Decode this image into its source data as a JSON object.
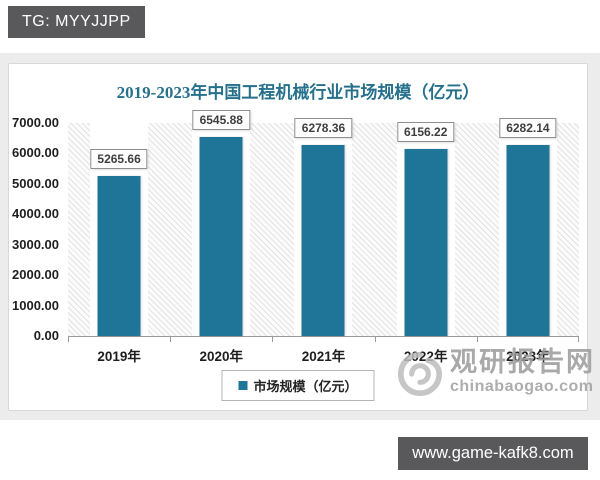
{
  "badge": {
    "text": "TG: MYYJJPP"
  },
  "website_bar": {
    "text": "www.game-kafk8.com"
  },
  "watermark": {
    "logo": "swirl-logo",
    "site_name": "观研报告网",
    "site_url": "chinabaogao.com"
  },
  "chart_data": {
    "type": "bar",
    "title": "2019-2023年中国工程机械行业市场规模（亿元）",
    "categories": [
      "2019年",
      "2020年",
      "2021年",
      "2022年",
      "2023年"
    ],
    "values": [
      5265.66,
      6545.88,
      6278.36,
      6156.22,
      6282.14
    ],
    "data_labels": [
      "5265.66",
      "6545.88",
      "6278.36",
      "6156.22",
      "6282.14"
    ],
    "legend": [
      "市场规模（亿元）"
    ],
    "legend_position": "bottom",
    "ylim": [
      0,
      7000
    ],
    "ytick_step": 1000,
    "ytick_labels": [
      "7000.00",
      "6000.00",
      "5000.00",
      "4000.00",
      "3000.00",
      "2000.00",
      "1000.00",
      "0.00"
    ],
    "grid": false,
    "bar_color": "#1f7598",
    "title_color": "#26708c",
    "plot_hatch": true
  },
  "colors": {
    "badge_bg": "#59595b",
    "page_band": "#ececec",
    "watermark_gray": "#9b9b9b"
  }
}
